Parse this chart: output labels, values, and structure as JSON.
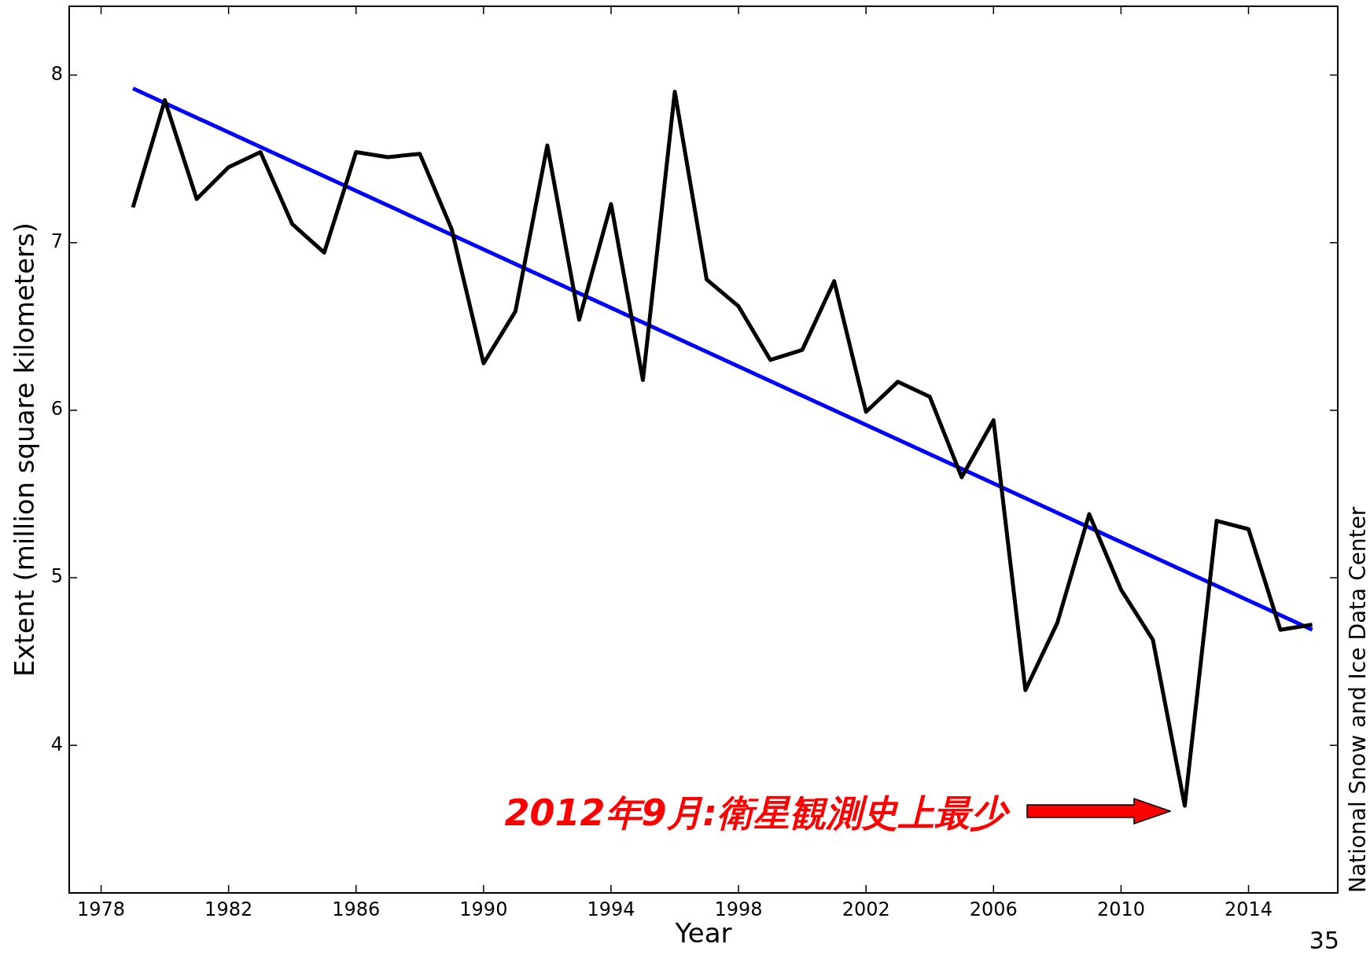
{
  "chart_data": {
    "type": "line",
    "xlabel": "Year",
    "ylabel": "Extent (million square kilometers)",
    "x": [
      1979,
      1980,
      1981,
      1982,
      1983,
      1984,
      1985,
      1986,
      1987,
      1988,
      1989,
      1990,
      1991,
      1992,
      1993,
      1994,
      1995,
      1996,
      1997,
      1998,
      1999,
      2000,
      2001,
      2002,
      2003,
      2004,
      2005,
      2006,
      2007,
      2008,
      2009,
      2010,
      2011,
      2012,
      2013,
      2014,
      2015,
      2016
    ],
    "series": [
      {
        "color": "#000000",
        "values": [
          7.21,
          7.85,
          7.26,
          7.45,
          7.54,
          7.11,
          6.94,
          7.54,
          7.51,
          7.53,
          7.08,
          6.28,
          6.59,
          7.58,
          6.54,
          7.23,
          6.18,
          7.9,
          6.78,
          6.62,
          6.3,
          6.36,
          6.77,
          5.99,
          6.17,
          6.08,
          5.6,
          5.94,
          4.33,
          4.73,
          5.38,
          4.93,
          4.63,
          3.64,
          5.34,
          5.29,
          4.69,
          4.72
        ]
      },
      {
        "type": "line",
        "x": [
          1979,
          2016
        ],
        "color": "#0000ff",
        "values": [
          7.92,
          4.69
        ]
      }
    ],
    "xlim": [
      1977,
      2016.8
    ],
    "ylim": [
      3.12,
      8.41
    ],
    "xticks": [
      1978,
      1982,
      1986,
      1990,
      1994,
      1998,
      2002,
      2006,
      2010,
      2014
    ],
    "yticks": [
      4,
      5,
      6,
      7,
      8
    ],
    "annotations": [
      "2012年9月:衛星観測史上最少",
      "National Snow and Ice Data Center",
      "35"
    ]
  }
}
